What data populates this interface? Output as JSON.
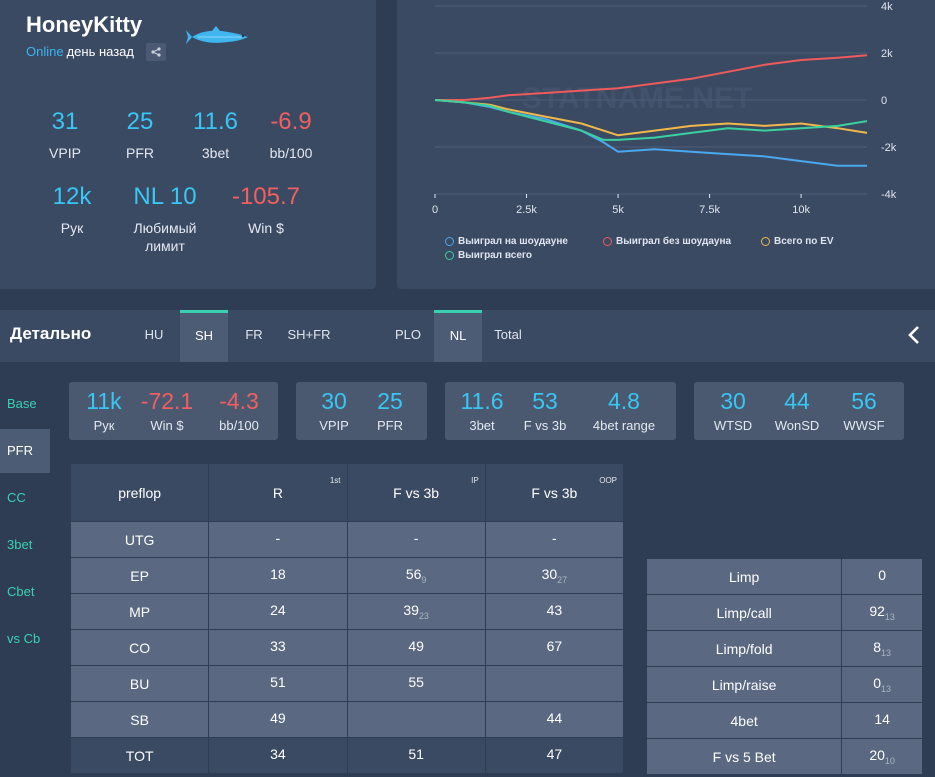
{
  "profile": {
    "name": "HoneyKitty",
    "online": "Online",
    "last_seen": "день назад",
    "stats": [
      {
        "value": "31",
        "label": "VPIP",
        "color": "#38c6f4"
      },
      {
        "value": "25",
        "label": "PFR",
        "color": "#38c6f4"
      },
      {
        "value": "11.6",
        "label": "3bet",
        "color": "#38c6f4"
      },
      {
        "value": "-6.9",
        "label": "bb/100",
        "color": "#f25f5f"
      },
      {
        "value": "12k",
        "label": "Рук",
        "color": "#38c6f4"
      },
      {
        "value": "NL 10",
        "label1": "Любимый",
        "label2": "лимит",
        "color": "#38c6f4"
      },
      {
        "value": "-105.7",
        "label": "Win $",
        "color": "#f25f5f"
      }
    ]
  },
  "chart_data": {
    "type": "line",
    "watermark": "STATNAME.NET",
    "x_ticks": [
      "0",
      "2.5k",
      "5k",
      "7.5k",
      "10k"
    ],
    "y_ticks": [
      "4k",
      "2k",
      "0",
      "-2k",
      "-4k"
    ],
    "xlim": [
      0,
      11800
    ],
    "ylim": [
      -4000,
      4000
    ],
    "series": [
      {
        "name": "Выиграл на шоудауне",
        "color": "#4aa8f0",
        "x": [
          0,
          800,
          1500,
          2000,
          3000,
          4000,
          4600,
          5000,
          6000,
          7000,
          8000,
          9000,
          10000,
          11000,
          11800
        ],
        "y": [
          0,
          -100,
          -300,
          -500,
          -800,
          -1300,
          -1800,
          -2200,
          -2100,
          -2200,
          -2300,
          -2400,
          -2600,
          -2800,
          -2800
        ]
      },
      {
        "name": "Выиграл без шоудауна",
        "color": "#ef5a5a",
        "x": [
          0,
          800,
          1500,
          2000,
          3000,
          4000,
          5000,
          6000,
          7000,
          8000,
          9000,
          10000,
          11000,
          11800
        ],
        "y": [
          0,
          0,
          100,
          200,
          300,
          400,
          500,
          700,
          900,
          1200,
          1500,
          1700,
          1800,
          1900
        ]
      },
      {
        "name": "Всего по EV",
        "color": "#f0b84a",
        "x": [
          0,
          800,
          1500,
          2000,
          3000,
          4000,
          4600,
          5000,
          6000,
          7000,
          8000,
          9000,
          10000,
          11000,
          11800
        ],
        "y": [
          0,
          -100,
          -200,
          -400,
          -700,
          -1000,
          -1300,
          -1500,
          -1300,
          -1100,
          -1000,
          -1100,
          -1000,
          -1200,
          -1400
        ]
      },
      {
        "name": "Выиграл всего",
        "color": "#3ad1a0",
        "x": [
          0,
          800,
          1500,
          2000,
          3000,
          4000,
          4600,
          5000,
          6000,
          7000,
          8000,
          9000,
          10000,
          11000,
          11800
        ],
        "y": [
          0,
          -100,
          -250,
          -500,
          -900,
          -1300,
          -1700,
          -1700,
          -1600,
          -1400,
          -1200,
          -1300,
          -1200,
          -1100,
          -900
        ]
      }
    ],
    "legend": [
      "Выиграл на шоудауне",
      "Выиграл без шоудауна",
      "Всего по EV",
      "Выиграл всего"
    ]
  },
  "detail": {
    "title": "Детально",
    "tabs": [
      {
        "label": "HU",
        "active": false
      },
      {
        "label": "SH",
        "active": true
      },
      {
        "label": "FR",
        "active": false
      },
      {
        "label": "SH+FR",
        "active": false
      },
      {
        "label": "PLO",
        "active": false
      },
      {
        "label": "NL",
        "active": true
      },
      {
        "label": "Total",
        "active": false
      }
    ]
  },
  "side_nav": [
    "Base",
    "PFR",
    "CC",
    "3bet",
    "Cbet",
    "vs Cb"
  ],
  "summary": [
    [
      {
        "value": "11k",
        "label": "Рук",
        "color": "#38c6f4"
      },
      {
        "value": "-72.1",
        "label": "Win $",
        "color": "#f25f5f"
      },
      {
        "value": "-4.3",
        "label": "bb/100",
        "color": "#f25f5f"
      }
    ],
    [
      {
        "value": "30",
        "label": "VPIP",
        "color": "#38c6f4"
      },
      {
        "value": "25",
        "label": "PFR",
        "color": "#38c6f4"
      }
    ],
    [
      {
        "value": "11.6",
        "label": "3bet",
        "color": "#38c6f4"
      },
      {
        "value": "53",
        "label": "F vs 3b",
        "color": "#38c6f4"
      },
      {
        "value": "4.8",
        "label": "4bet range",
        "color": "#38c6f4"
      }
    ],
    [
      {
        "value": "30",
        "label": "WTSD",
        "color": "#38c6f4"
      },
      {
        "value": "44",
        "label": "WonSD",
        "color": "#38c6f4"
      },
      {
        "value": "56",
        "label": "WWSF",
        "color": "#38c6f4"
      }
    ]
  ],
  "preflop_table": {
    "headers": [
      {
        "label": "preflop",
        "tag": ""
      },
      {
        "label": "R",
        "tag": "1st"
      },
      {
        "label": "F vs 3b",
        "tag": "IP"
      },
      {
        "label": "F vs 3b",
        "tag": "OOP"
      }
    ],
    "rows": [
      {
        "pos": "UTG",
        "r": "-",
        "r_sub": "",
        "ip": "-",
        "ip_sub": "",
        "oop": "-",
        "oop_sub": ""
      },
      {
        "pos": "EP",
        "r": "18",
        "r_sub": "",
        "ip": "56",
        "ip_sub": "9",
        "oop": "30",
        "oop_sub": "27"
      },
      {
        "pos": "MP",
        "r": "24",
        "r_sub": "",
        "ip": "39",
        "ip_sub": "23",
        "oop": "43",
        "oop_sub": ""
      },
      {
        "pos": "CO",
        "r": "33",
        "r_sub": "",
        "ip": "49",
        "ip_sub": "",
        "oop": "67",
        "oop_sub": ""
      },
      {
        "pos": "BU",
        "r": "51",
        "r_sub": "",
        "ip": "55",
        "ip_sub": "",
        "oop": "",
        "oop_sub": ""
      },
      {
        "pos": "SB",
        "r": "49",
        "r_sub": "",
        "ip": "",
        "ip_sub": "",
        "oop": "44",
        "oop_sub": ""
      },
      {
        "pos": "TOT",
        "r": "34",
        "r_sub": "",
        "ip": "51",
        "ip_sub": "",
        "oop": "47",
        "oop_sub": ""
      }
    ]
  },
  "limp_table": [
    {
      "label": "Limp",
      "value": "0",
      "sub": ""
    },
    {
      "label": "Limp/call",
      "value": "92",
      "sub": "13"
    },
    {
      "label": "Limp/fold",
      "value": "8",
      "sub": "13"
    },
    {
      "label": "Limp/raise",
      "value": "0",
      "sub": "13"
    },
    {
      "label": "4bet",
      "value": "14",
      "sub": ""
    },
    {
      "label": "F vs 5 Bet",
      "value": "20",
      "sub": "10"
    }
  ]
}
